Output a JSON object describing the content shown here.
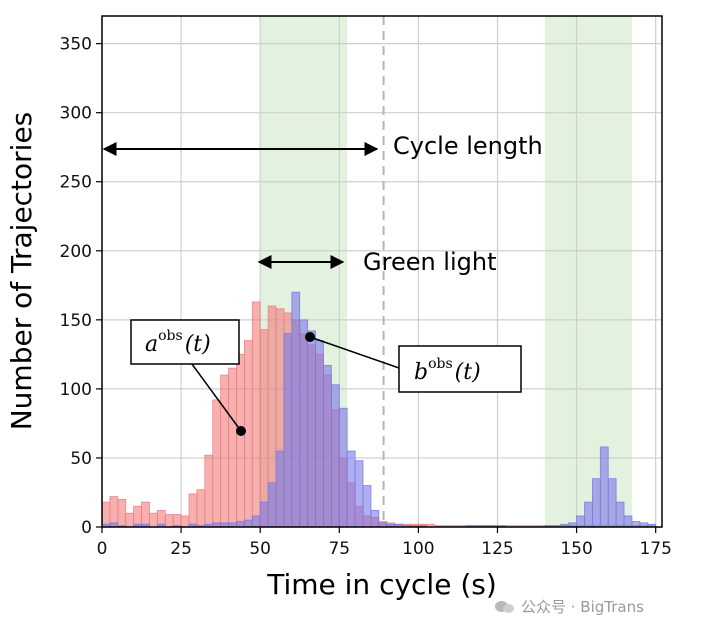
{
  "chart_data": {
    "type": "bar",
    "title": "",
    "xlabel": "Time in cycle (s)",
    "ylabel": "Number of Trajectories",
    "xlim": [
      0,
      177
    ],
    "ylim": [
      0,
      370
    ],
    "xticks": [
      0,
      25,
      50,
      75,
      100,
      125,
      150,
      175
    ],
    "yticks": [
      0,
      50,
      100,
      150,
      200,
      250,
      300,
      350
    ],
    "grid": true,
    "bin_width": 2.5,
    "green_bands": [
      [
        50,
        77.5
      ],
      [
        140,
        167.5
      ]
    ],
    "cycle_marker_x": 89,
    "series": [
      {
        "name": "a_obs",
        "color": "#f07c7c",
        "values": [
          18,
          22,
          20,
          10,
          15,
          18,
          10,
          12,
          9,
          9,
          8,
          24,
          27,
          52,
          92,
          110,
          115,
          125,
          135,
          163,
          143,
          160,
          158,
          155,
          150,
          140,
          132,
          125,
          110,
          85,
          50,
          32,
          15,
          8,
          7,
          4,
          3,
          2,
          2,
          2,
          2,
          2,
          1,
          1,
          1,
          1,
          1,
          1,
          1,
          1,
          1,
          1,
          1,
          1,
          1,
          1,
          1,
          1,
          1,
          1,
          1,
          1,
          1,
          1,
          1,
          1,
          1,
          1,
          1,
          1
        ]
      },
      {
        "name": "b_obs",
        "color": "#7878e6",
        "values": [
          2,
          3,
          1,
          0,
          2,
          2,
          0,
          2,
          0,
          1,
          0,
          2,
          1,
          2,
          3,
          3,
          3,
          4,
          5,
          8,
          18,
          32,
          55,
          140,
          170,
          150,
          142,
          135,
          117,
          103,
          86,
          55,
          48,
          30,
          12,
          3,
          2,
          2,
          1,
          1,
          1,
          0,
          0,
          0,
          0,
          0,
          1,
          1,
          1,
          1,
          1,
          0,
          0,
          0,
          0,
          0,
          1,
          1,
          2,
          3,
          8,
          18,
          35,
          58,
          35,
          18,
          8,
          4,
          3,
          2
        ]
      }
    ],
    "annotations": {
      "cycle_length": "Cycle length",
      "green_light": "Green light",
      "a_label": {
        "base": "a",
        "sup": "obs",
        "arg": "(t)"
      },
      "b_label": {
        "base": "b",
        "sup": "obs",
        "arg": "(t)"
      }
    }
  },
  "watermark": {
    "text": "公众号 · BigTrans"
  }
}
